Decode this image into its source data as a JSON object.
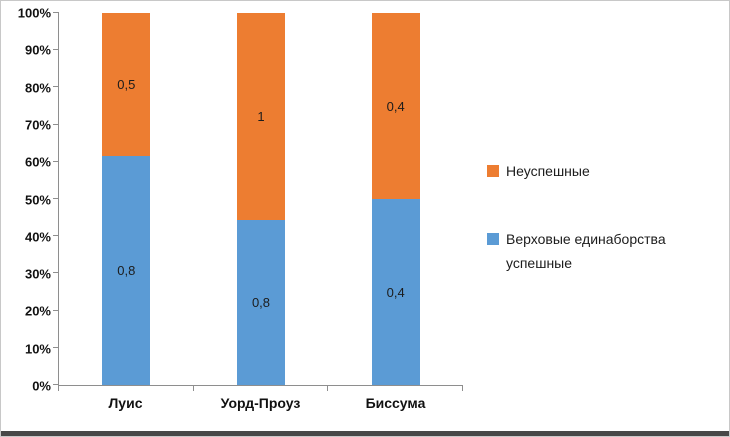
{
  "chart_data": {
    "type": "bar",
    "subtype": "stacked-100-percent",
    "title": "",
    "categories": [
      "Луис",
      "Уорд-Проуз",
      "Биссума"
    ],
    "series": [
      {
        "name": "Неуспешные",
        "color": "#ED7D31",
        "values": [
          0.5,
          1,
          0.4
        ],
        "labels": [
          "0,5",
          "1",
          "0,4"
        ]
      },
      {
        "name": "Верховые единаборства успешные",
        "color": "#5B9BD5",
        "values": [
          0.8,
          0.8,
          0.4
        ],
        "labels": [
          "0,8",
          "0,8",
          "0,4"
        ]
      }
    ],
    "y_ticks": [
      "0%",
      "10%",
      "20%",
      "30%",
      "40%",
      "50%",
      "60%",
      "70%",
      "80%",
      "90%",
      "100%"
    ],
    "ylim": [
      0,
      100
    ],
    "grid": false,
    "legend_position": "right"
  }
}
